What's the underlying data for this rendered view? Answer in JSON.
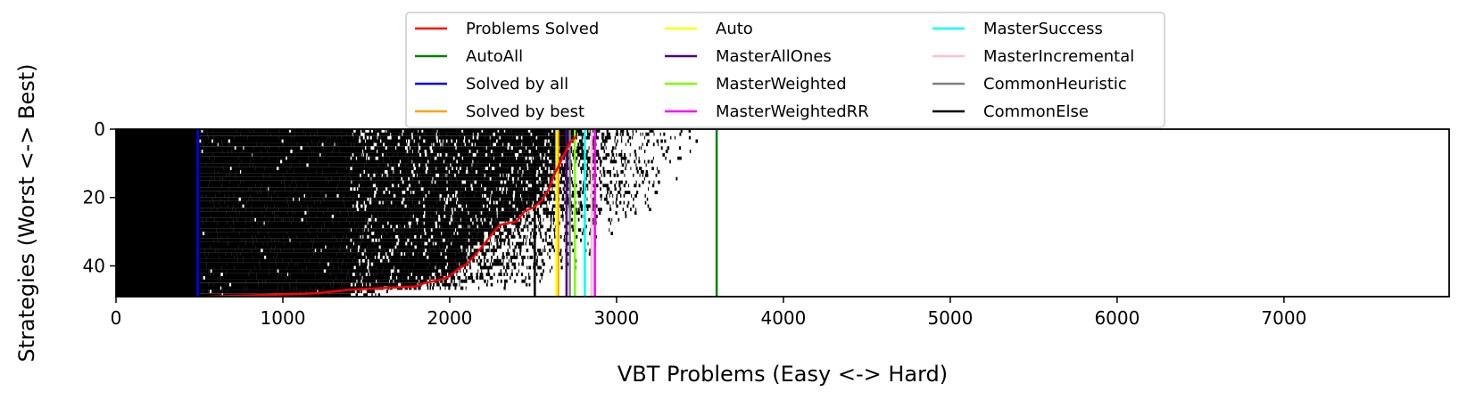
{
  "chart_data": {
    "type": "heatmap",
    "xlabel": "VBT Problems (Easy <-> Hard)",
    "ylabel": "Strategies (Worst <-> Best)",
    "xlim": [
      0,
      7990
    ],
    "ylim": [
      49,
      0
    ],
    "x_ticks": [
      "0",
      "1000",
      "2000",
      "3000",
      "4000",
      "5000",
      "6000",
      "7000"
    ],
    "x_tick_values": [
      0,
      1000,
      2000,
      3000,
      4000,
      5000,
      6000,
      7000
    ],
    "y_ticks": [
      "0",
      "20",
      "40"
    ],
    "y_tick_values": [
      0,
      20,
      40
    ],
    "grid": false,
    "legend_position": "top-center",
    "heatmap": {
      "n_strategies": 49,
      "colormap": "black-solved / white-unsolved",
      "fully_solved_until": 500,
      "dense_black_until": 1400,
      "sparse_fringe_until": 3600
    },
    "vertical_lines": [
      {
        "name": "AutoAll",
        "x": 3600,
        "color": "#008000"
      },
      {
        "name": "Solved by all",
        "x": 490,
        "color": "#0000ff"
      },
      {
        "name": "Solved by best",
        "x": 2650,
        "color": "#ffa500"
      },
      {
        "name": "Auto",
        "x": 2640,
        "color": "#ffff00"
      },
      {
        "name": "MasterAllOnes",
        "x": 2700,
        "color": "#4b0082"
      },
      {
        "name": "MasterWeighted",
        "x": 2750,
        "color": "#7cfc00"
      },
      {
        "name": "MasterWeightedRR",
        "x": 2870,
        "color": "#ff00ff"
      },
      {
        "name": "MasterSuccess",
        "x": 2810,
        "color": "#00ffff"
      },
      {
        "name": "MasterIncremental",
        "x": 2850,
        "color": "#ffc0cb"
      },
      {
        "name": "CommonHeuristic",
        "x": 2720,
        "color": "#808080"
      },
      {
        "name": "CommonElse",
        "x": 2510,
        "color": "#000000"
      }
    ],
    "series": [
      {
        "name": "Problems Solved",
        "color": "#ff0000",
        "x": [
          560,
          900,
          1200,
          1400,
          1600,
          1800,
          1850,
          1950,
          2000,
          2050,
          2100,
          2150,
          2200,
          2250,
          2300,
          2400,
          2450,
          2500,
          2550,
          2600,
          2620,
          2640,
          2660,
          2680,
          2700,
          2720,
          2740,
          2760
        ],
        "y": [
          49,
          48.5,
          48,
          47,
          46.5,
          46,
          45,
          44,
          43,
          41,
          39.5,
          37,
          34,
          31,
          28,
          27,
          24,
          23,
          21,
          17,
          14,
          12,
          10,
          8,
          6,
          4,
          3,
          2
        ]
      }
    ],
    "legend": [
      {
        "label": "Problems Solved",
        "color": "#ff0000"
      },
      {
        "label": "AutoAll",
        "color": "#008000"
      },
      {
        "label": "Solved by all",
        "color": "#0000ff"
      },
      {
        "label": "Solved by best",
        "color": "#ffa500"
      },
      {
        "label": "Auto",
        "color": "#ffff00"
      },
      {
        "label": "MasterAllOnes",
        "color": "#4b0082"
      },
      {
        "label": "MasterWeighted",
        "color": "#7cfc00"
      },
      {
        "label": "MasterWeightedRR",
        "color": "#ff00ff"
      },
      {
        "label": "MasterSuccess",
        "color": "#00ffff"
      },
      {
        "label": "MasterIncremental",
        "color": "#ffc0cb"
      },
      {
        "label": "CommonHeuristic",
        "color": "#808080"
      },
      {
        "label": "CommonElse",
        "color": "#000000"
      }
    ]
  }
}
